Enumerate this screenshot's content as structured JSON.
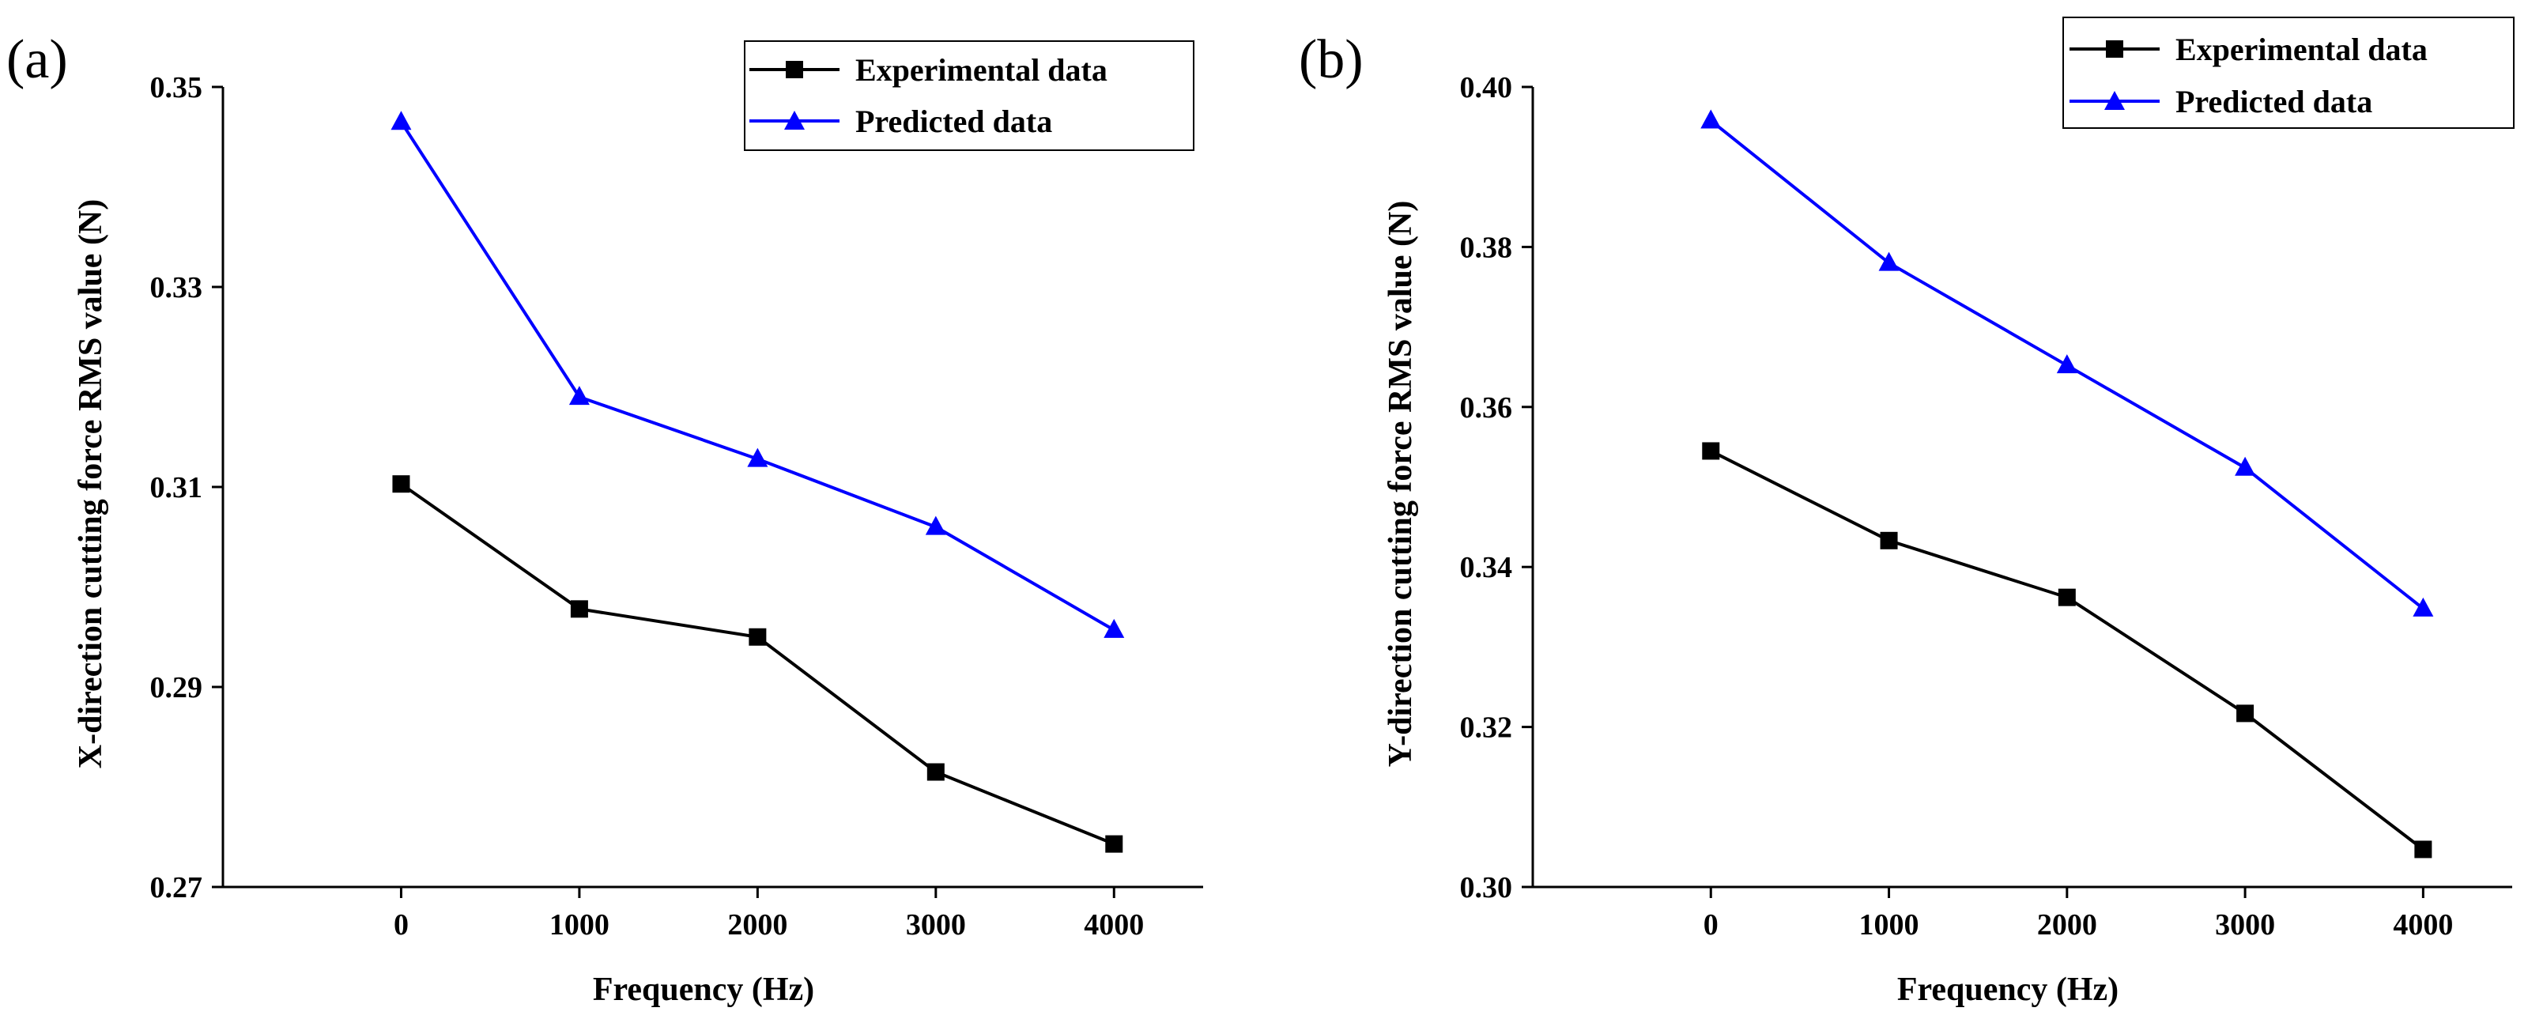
{
  "chart_data": [
    {
      "type": "line",
      "panel_label": "(a)",
      "title": "",
      "xlabel": "Frequency (Hz)",
      "ylabel": "X-direction cutting force RMS value (N)",
      "x": [
        0,
        1000,
        2000,
        3000,
        4000
      ],
      "x_tick_labels": [
        "0",
        "1000",
        "2000",
        "3000",
        "4000"
      ],
      "xlim": [
        -1000,
        4500
      ],
      "ylim": [
        0.27,
        0.35
      ],
      "y_ticks": [
        0.27,
        0.29,
        0.31,
        0.33,
        0.35
      ],
      "y_tick_labels": [
        "0.27",
        "0.29",
        "0.31",
        "0.33",
        "0.35"
      ],
      "grid": false,
      "legend_position": "top-right",
      "series": [
        {
          "name": "Experimental data",
          "color": "#000000",
          "marker": "square",
          "values": [
            0.3103,
            0.2978,
            0.295,
            0.2815,
            0.2743
          ]
        },
        {
          "name": "Predicted data",
          "color": "#0000ff",
          "marker": "triangle",
          "values": [
            0.3465,
            0.319,
            0.3128,
            0.306,
            0.2957
          ]
        }
      ]
    },
    {
      "type": "line",
      "panel_label": "(b)",
      "title": "",
      "xlabel": "Frequency (Hz)",
      "ylabel": "Y-direction cutting force RMS value (N)",
      "x": [
        0,
        1000,
        2000,
        3000,
        4000
      ],
      "x_tick_labels": [
        "0",
        "1000",
        "2000",
        "3000",
        "4000"
      ],
      "xlim": [
        -1000,
        4500
      ],
      "ylim": [
        0.3,
        0.4
      ],
      "y_ticks": [
        0.3,
        0.32,
        0.34,
        0.36,
        0.38,
        0.4
      ],
      "y_tick_labels": [
        "0.30",
        "0.32",
        "0.34",
        "0.36",
        "0.38",
        "0.40"
      ],
      "grid": false,
      "legend_position": "top-right",
      "series": [
        {
          "name": "Experimental data",
          "color": "#000000",
          "marker": "square",
          "values": [
            0.3545,
            0.3433,
            0.3362,
            0.3217,
            0.3047
          ]
        },
        {
          "name": "Predicted data",
          "color": "#0000ff",
          "marker": "triangle",
          "values": [
            0.3958,
            0.378,
            0.3652,
            0.3524,
            0.3348
          ]
        }
      ]
    }
  ]
}
